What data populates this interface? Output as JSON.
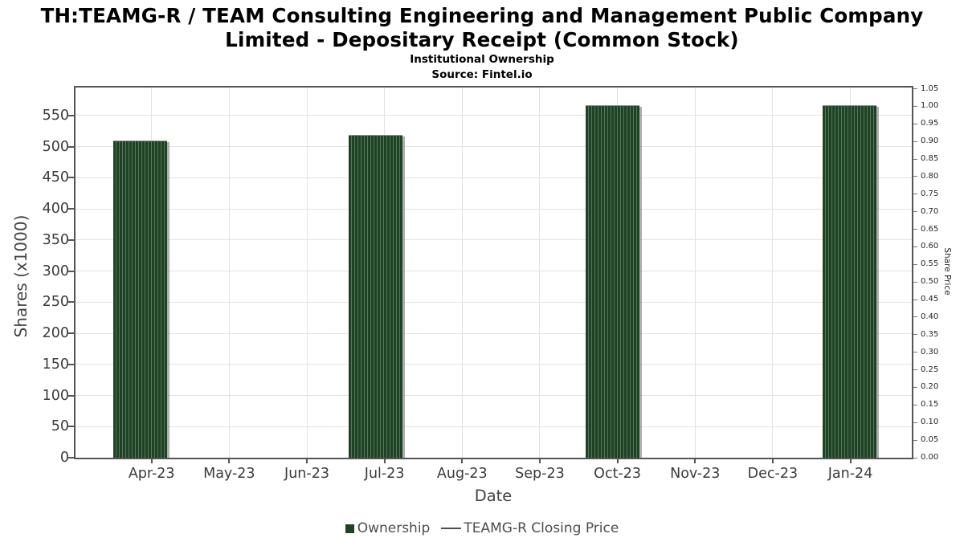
{
  "header": {
    "title_line1": "TH:TEAMG-R / TEAM Consulting Engineering and Management Public Company",
    "title_line2": "Limited - Depositary Receipt (Common Stock)",
    "subtitle": "Institutional Ownership",
    "source": "Source: Fintel.io"
  },
  "chart_data": {
    "type": "bar",
    "title": "TH:TEAMG-R / TEAM Consulting Engineering and Management Public Company Limited - Depositary Receipt (Common Stock)",
    "subtitle": "Institutional Ownership",
    "source": "Source: Fintel.io",
    "x_axis": {
      "label": "Date",
      "categories": [
        "Apr-23",
        "May-23",
        "Jun-23",
        "Jul-23",
        "Aug-23",
        "Sep-23",
        "Oct-23",
        "Nov-23",
        "Dec-23",
        "Jan-24"
      ]
    },
    "left_axis": {
      "label": "Shares (x1000)",
      "ticks": [
        0,
        50,
        100,
        150,
        200,
        250,
        300,
        350,
        400,
        450,
        500,
        550
      ],
      "range": [
        0,
        595
      ],
      "grid": true
    },
    "right_axis": {
      "label": "Share Price",
      "ticks": [
        "0.00",
        "0.05",
        "0.10",
        "0.15",
        "0.20",
        "0.25",
        "0.30",
        "0.35",
        "0.40",
        "0.45",
        "0.50",
        "0.55",
        "0.60",
        "0.65",
        "0.70",
        "0.75",
        "0.80",
        "0.85",
        "0.90",
        "0.95",
        "1.00",
        "1.05"
      ],
      "tick_step": 0.05,
      "range": [
        0,
        1.053
      ]
    },
    "series": [
      {
        "name": "Ownership",
        "type": "bar",
        "unit": "shares x1000",
        "color": "#1d4323",
        "stripe_color": "#597560",
        "points": [
          {
            "x": "Apr-23",
            "y": 508
          },
          {
            "x": "Jul-23",
            "y": 517
          },
          {
            "x": "Oct-23",
            "y": 565
          },
          {
            "x": "Jan-24",
            "y": 565
          }
        ]
      },
      {
        "name": "TEAMG-R Closing Price",
        "type": "line",
        "color": "#4d4d4d",
        "points": []
      }
    ],
    "legend": {
      "position": "bottom-center",
      "entries": [
        {
          "swatch": "square",
          "color": "#1d4323",
          "label": "Ownership"
        },
        {
          "swatch": "line",
          "color": "#4d4d4d",
          "label": "TEAMG-R Closing Price"
        }
      ]
    },
    "colors": {
      "bar": "#1d4323",
      "bar_stripe": "#597560",
      "grid": "#e3e3e3",
      "spine": "#555555",
      "background": "#ffffff"
    }
  }
}
